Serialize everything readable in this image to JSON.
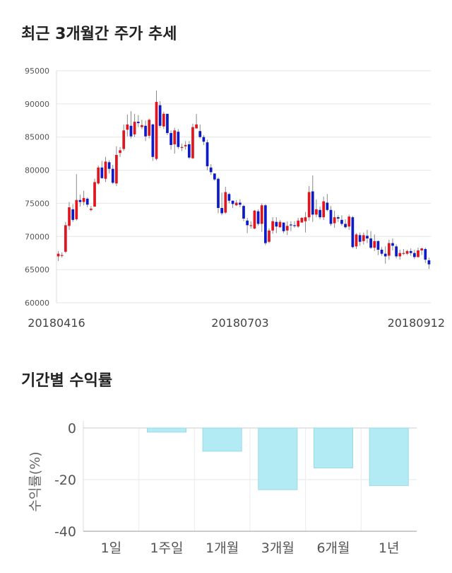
{
  "titles": {
    "price_trend": "최근 3개월간 주가 추세",
    "period_returns": "기간별 수익률"
  },
  "colors": {
    "up": "#e0151f",
    "down": "#0c1ac8",
    "wick": "#888888",
    "bar_fill": "#b3ebf4",
    "bar_stroke": "#9adbe6",
    "grid": "#e6e6e6"
  },
  "chart_data": [
    {
      "type": "candlestick",
      "title": "최근 3개월간 주가 추세",
      "ylim": [
        60000,
        95000
      ],
      "yticks": [
        95000,
        90000,
        85000,
        80000,
        75000,
        70000,
        65000,
        60000
      ],
      "xtick_labels": [
        "20180416",
        "20180703",
        "20180912"
      ],
      "grid": true,
      "candles": [
        [
          67000,
          67400,
          66300,
          67800
        ],
        [
          67200,
          67200,
          66800,
          67600
        ],
        [
          67700,
          71700,
          67500,
          72200
        ],
        [
          71600,
          74400,
          71000,
          75200
        ],
        [
          74100,
          72500,
          72200,
          74900
        ],
        [
          72600,
          75500,
          72400,
          79400
        ],
        [
          75500,
          75200,
          74500,
          76300
        ],
        [
          75200,
          75800,
          74700,
          76900
        ],
        [
          75700,
          74800,
          74400,
          75900
        ],
        [
          74000,
          74200,
          73800,
          74600
        ],
        [
          74500,
          78200,
          74500,
          78700
        ],
        [
          78000,
          80400,
          77800,
          80700
        ],
        [
          80400,
          78800,
          78700,
          81400
        ],
        [
          78700,
          81300,
          78200,
          82000
        ],
        [
          81200,
          80200,
          79500,
          81500
        ],
        [
          80200,
          78100,
          77900,
          80800
        ],
        [
          78000,
          82300,
          77600,
          83600
        ],
        [
          82600,
          83000,
          82000,
          83500
        ],
        [
          83200,
          86000,
          82900,
          86900
        ],
        [
          86100,
          86900,
          85100,
          88400
        ],
        [
          86700,
          85100,
          84800,
          88900
        ],
        [
          85400,
          87300,
          85000,
          88500
        ],
        [
          87300,
          87100,
          86500,
          88300
        ],
        [
          86500,
          86800,
          86200,
          87600
        ],
        [
          86700,
          85100,
          84400,
          87500
        ],
        [
          85200,
          87600,
          84800,
          87800
        ],
        [
          86900,
          82000,
          81400,
          87000
        ],
        [
          81700,
          90300,
          81500,
          92000
        ],
        [
          89800,
          86700,
          86400,
          90400
        ],
        [
          86600,
          88500,
          86200,
          88800
        ],
        [
          88500,
          85600,
          85300,
          88500
        ],
        [
          85600,
          83800,
          83100,
          86000
        ],
        [
          83900,
          86000,
          82500,
          86400
        ],
        [
          85800,
          83500,
          83200,
          86200
        ],
        [
          83400,
          83500,
          82900,
          84000
        ],
        [
          83600,
          83800,
          83100,
          84400
        ],
        [
          83900,
          81900,
          81700,
          84400
        ],
        [
          81800,
          86500,
          81700,
          87000
        ],
        [
          86300,
          86900,
          86300,
          88500
        ],
        [
          85900,
          85000,
          84800,
          86900
        ],
        [
          85000,
          84300,
          83800,
          85300
        ],
        [
          84200,
          80600,
          80000,
          84600
        ],
        [
          80400,
          79700,
          79300,
          80900
        ],
        [
          79500,
          78600,
          78400,
          79500
        ],
        [
          78700,
          74300,
          73500,
          78900
        ],
        [
          74300,
          73500,
          73200,
          76600
        ],
        [
          73600,
          76700,
          73400,
          77500
        ],
        [
          76400,
          75400,
          75000,
          76600
        ],
        [
          75400,
          74900,
          74300,
          75400
        ],
        [
          74700,
          75100,
          74600,
          75500
        ],
        [
          75100,
          74800,
          74400,
          75600
        ],
        [
          74600,
          72700,
          72300,
          74800
        ],
        [
          72400,
          71700,
          70500,
          72800
        ],
        [
          71700,
          71700,
          71200,
          72300
        ],
        [
          71200,
          73900,
          71100,
          74000
        ],
        [
          73800,
          71900,
          71600,
          74100
        ],
        [
          71900,
          74700,
          70700,
          75000
        ],
        [
          74700,
          69000,
          68700,
          74900
        ],
        [
          69200,
          70900,
          69000,
          71200
        ],
        [
          70900,
          72300,
          70400,
          72900
        ],
        [
          72200,
          71500,
          70500,
          72900
        ],
        [
          71400,
          72200,
          71300,
          72500
        ],
        [
          72100,
          70800,
          70500,
          72100
        ],
        [
          70900,
          71600,
          70200,
          72300
        ],
        [
          71800,
          71700,
          70800,
          72300
        ],
        [
          71700,
          71600,
          71300,
          72300
        ],
        [
          71500,
          72400,
          71300,
          72800
        ],
        [
          72100,
          72800,
          72200,
          72900
        ],
        [
          72300,
          72900,
          70600,
          73700
        ],
        [
          72900,
          76700,
          72400,
          77600
        ],
        [
          76800,
          73300,
          72200,
          79200
        ],
        [
          73300,
          74100,
          72900,
          75600
        ],
        [
          74000,
          72900,
          72600,
          74500
        ],
        [
          72900,
          75300,
          72500,
          76000
        ],
        [
          75100,
          74000,
          73800,
          76400
        ],
        [
          74000,
          71900,
          71600,
          74600
        ],
        [
          72000,
          72900,
          71300,
          73900
        ],
        [
          72900,
          72700,
          72200,
          73200
        ],
        [
          72500,
          71900,
          71600,
          73200
        ],
        [
          71900,
          71400,
          71200,
          72600
        ],
        [
          71500,
          73000,
          71000,
          73300
        ],
        [
          72900,
          68400,
          68200,
          73100
        ],
        [
          68500,
          70300,
          68100,
          70500
        ],
        [
          70200,
          69200,
          68600,
          70600
        ],
        [
          69300,
          70200,
          68800,
          70600
        ],
        [
          70100,
          69700,
          69000,
          71000
        ],
        [
          69700,
          68300,
          68100,
          70800
        ],
        [
          68300,
          69300,
          67800,
          70300
        ],
        [
          69300,
          68000,
          67200,
          69400
        ],
        [
          68000,
          67400,
          67100,
          68400
        ],
        [
          67400,
          67000,
          65900,
          68500
        ],
        [
          67100,
          69000,
          66500,
          69500
        ],
        [
          69000,
          68600,
          67900,
          69700
        ],
        [
          68500,
          67000,
          66700,
          68800
        ],
        [
          67000,
          67500,
          66500,
          68000
        ],
        [
          67500,
          67500,
          67200,
          68100
        ],
        [
          67400,
          67800,
          67200,
          68000
        ],
        [
          67800,
          67500,
          67100,
          68200
        ],
        [
          67500,
          66900,
          66600,
          68000
        ],
        [
          66900,
          67900,
          66800,
          68300
        ],
        [
          67900,
          68200,
          67200,
          68300
        ],
        [
          68100,
          66500,
          66000,
          68300
        ],
        [
          66400,
          65800,
          65100,
          66800
        ]
      ]
    },
    {
      "type": "bar",
      "title": "기간별 수익률",
      "categories": [
        "1일",
        "1주일",
        "1개월",
        "3개월",
        "6개월",
        "1년"
      ],
      "values": [
        0,
        -1.6,
        -9.0,
        -23.9,
        -15.5,
        -22.3
      ],
      "ylabel": "수익률(%)",
      "ylim": [
        -40,
        0
      ],
      "yticks": [
        0,
        -20,
        -40
      ],
      "grid": true
    }
  ]
}
